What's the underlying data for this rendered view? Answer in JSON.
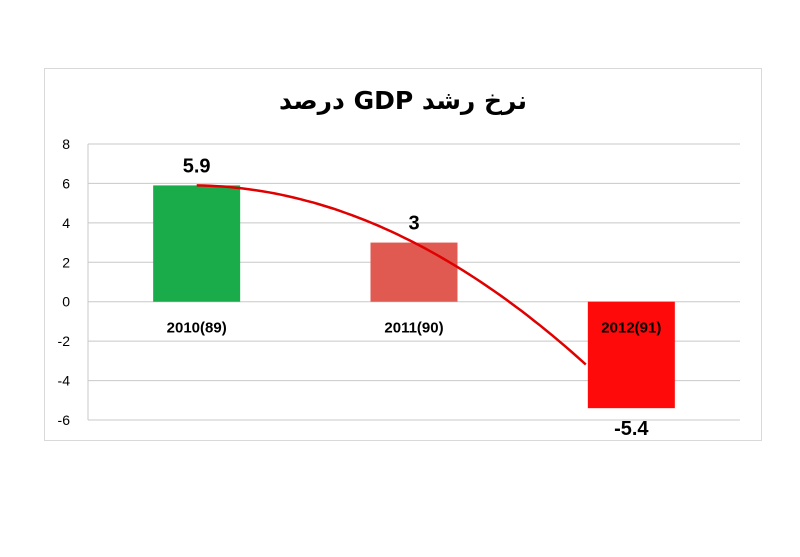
{
  "chart_data": {
    "type": "bar",
    "title": "نرخ رشد GDP درصد",
    "categories": [
      "2010(89)",
      "2011(90)",
      "2012(91)"
    ],
    "values": [
      5.9,
      3,
      -5.4
    ],
    "data_labels": [
      "5.9",
      "3",
      "-5.4"
    ],
    "bar_colors": [
      "#1aab4b",
      "#e05a52",
      "#ff0a0a"
    ],
    "ylim": [
      -6,
      8
    ],
    "yticks": [
      8,
      6,
      4,
      2,
      0,
      -2,
      -4,
      -6
    ],
    "grid": true,
    "trendline": {
      "type": "polynomial",
      "color": "#e00000"
    },
    "xlabel": "",
    "ylabel": ""
  }
}
